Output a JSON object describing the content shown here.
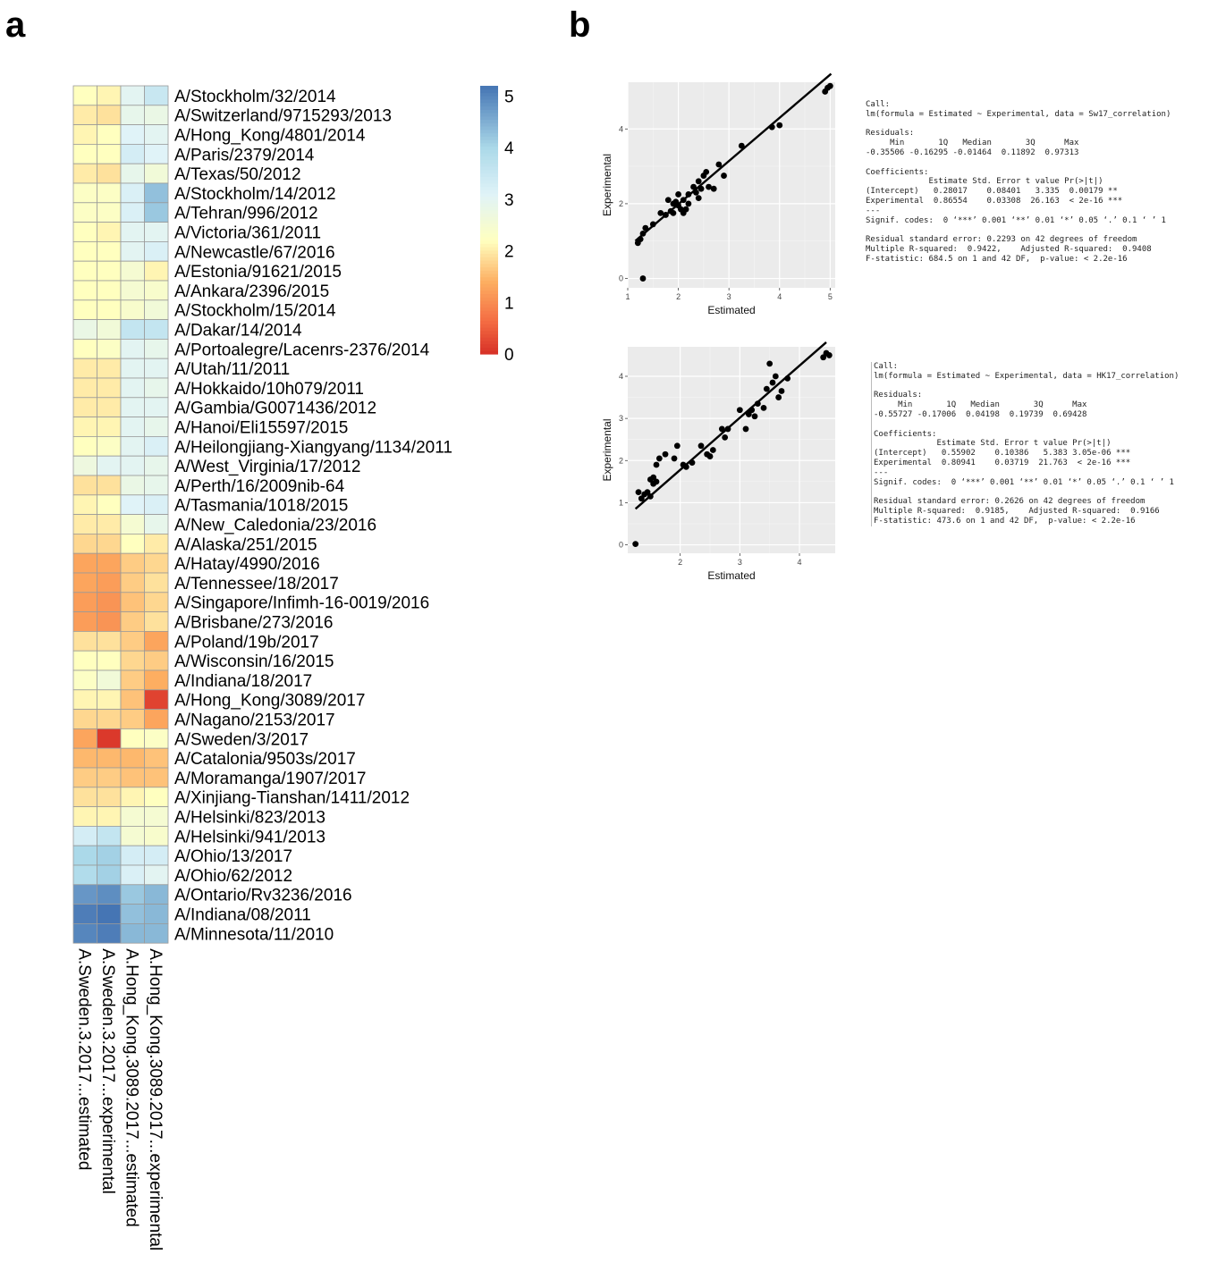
{
  "panel_letters": {
    "a": "a",
    "b": "b"
  },
  "chart_data": [
    {
      "type": "heatmap",
      "panel": "a",
      "columns": [
        "A.Sweden.3.2017...estimated",
        "A.Sweden.3.2017...experimental",
        "A.Hong_Kong.3089.2017...estimated",
        "A.Hong_Kong.3089.2017...experimental"
      ],
      "rows": [
        "A/Stockholm/32/2014",
        "A/Switzerland/9715293/2013",
        "A/Hong_Kong/4801/2014",
        "A/Paris/2379/2014",
        "A/Texas/50/2012",
        "A/Stockholm/14/2012",
        "A/Tehran/996/2012",
        "A/Victoria/361/2011",
        "A/Newcastle/67/2016",
        "A/Estonia/91621/2015",
        "A/Ankara/2396/2015",
        "A/Stockholm/15/2014",
        "A/Dakar/14/2014",
        "A/Portoalegre/Lacenrs-2376/2014",
        "A/Utah/11/2011",
        "A/Hokkaido/10h079/2011",
        "A/Gambia/G0071436/2012",
        "A/Hanoi/Eli15597/2015",
        "A/Heilongjiang-Xiangyang/1134/2011",
        "A/West_Virginia/17/2012",
        "A/Perth/16/2009nib-64",
        "A/Tasmania/1018/2015",
        "A/New_Caledonia/23/2016",
        "A/Alaska/251/2015",
        "A/Hatay/4990/2016",
        "A/Tennessee/18/2017",
        "A/Singapore/Infimh-16-0019/2016",
        "A/Brisbane/273/2016",
        "A/Poland/19b/2017",
        "A/Wisconsin/16/2015",
        "A/Indiana/18/2017",
        "A/Hong_Kong/3089/2017",
        "A/Nagano/2153/2017",
        "A/Sweden/3/2017",
        "A/Catalonia/9503s/2017",
        "A/Moramanga/1907/2017",
        "A/Xinjiang-Tianshan/1411/2012",
        "A/Helsinki/823/2013",
        "A/Helsinki/941/2013",
        "A/Ohio/13/2017",
        "A/Ohio/62/2012",
        "A/Ontario/Rv3236/2016",
        "A/Indiana/08/2011",
        "A/Minnesota/11/2010"
      ],
      "values": [
        [
          2.2,
          2.1,
          3.0,
          3.5
        ],
        [
          2.0,
          1.9,
          2.9,
          2.8
        ],
        [
          2.1,
          2.2,
          3.1,
          3.0
        ],
        [
          2.2,
          2.2,
          3.3,
          3.1
        ],
        [
          2.0,
          1.9,
          2.9,
          2.6
        ],
        [
          2.3,
          2.3,
          3.2,
          4.3
        ],
        [
          2.3,
          2.3,
          3.2,
          4.2
        ],
        [
          2.2,
          2.1,
          3.0,
          3.0
        ],
        [
          2.2,
          2.2,
          3.0,
          3.2
        ],
        [
          2.2,
          2.2,
          2.5,
          2.1
        ],
        [
          2.2,
          2.2,
          2.5,
          2.4
        ],
        [
          2.2,
          2.2,
          2.4,
          2.6
        ],
        [
          2.8,
          2.6,
          3.6,
          3.6
        ],
        [
          2.2,
          2.3,
          3.0,
          2.9
        ],
        [
          2.0,
          2.0,
          3.0,
          3.0
        ],
        [
          2.0,
          2.0,
          3.0,
          2.9
        ],
        [
          2.0,
          2.0,
          3.0,
          3.0
        ],
        [
          2.1,
          2.1,
          3.0,
          2.9
        ],
        [
          2.2,
          2.3,
          3.0,
          3.2
        ],
        [
          2.7,
          3.0,
          3.0,
          2.9
        ],
        [
          1.9,
          1.9,
          2.8,
          2.9
        ],
        [
          2.1,
          2.2,
          3.1,
          3.2
        ],
        [
          2.0,
          2.0,
          2.5,
          2.9
        ],
        [
          1.8,
          1.8,
          2.2,
          2.0
        ],
        [
          1.3,
          1.3,
          1.7,
          1.8
        ],
        [
          1.3,
          1.2,
          1.7,
          1.9
        ],
        [
          1.2,
          1.1,
          1.6,
          1.8
        ],
        [
          1.2,
          1.1,
          1.7,
          1.9
        ],
        [
          1.9,
          1.9,
          1.7,
          1.3
        ],
        [
          2.2,
          2.2,
          1.8,
          1.7
        ],
        [
          2.3,
          2.6,
          1.7,
          1.4
        ],
        [
          2.1,
          2.1,
          1.6,
          0.2
        ],
        [
          1.8,
          1.8,
          1.7,
          1.3
        ],
        [
          1.3,
          0.1,
          2.2,
          2.3
        ],
        [
          1.5,
          1.5,
          1.5,
          1.6
        ],
        [
          1.7,
          1.7,
          1.6,
          1.6
        ],
        [
          1.9,
          1.9,
          2.1,
          2.2
        ],
        [
          2.1,
          2.1,
          2.5,
          2.5
        ],
        [
          3.3,
          3.6,
          2.5,
          2.4
        ],
        [
          4.0,
          4.1,
          3.3,
          3.3
        ],
        [
          3.9,
          4.1,
          3.2,
          3.0
        ],
        [
          4.8,
          4.9,
          4.2,
          4.4
        ],
        [
          5.1,
          5.2,
          4.3,
          4.4
        ],
        [
          5.0,
          5.1,
          4.4,
          4.4
        ]
      ],
      "colorbar": {
        "min": 0,
        "max": 5.2,
        "ticks": [
          0,
          1,
          2,
          3,
          4,
          5
        ],
        "low_color": "#d73027",
        "mid_color": "#ffffbf",
        "high_color": "#4575b4"
      }
    },
    {
      "type": "scatter",
      "panel": "b-top",
      "xlabel": "Estimated",
      "ylabel": "Experimental",
      "xlim": [
        1.0,
        5.1
      ],
      "ylim": [
        -0.25,
        5.25
      ],
      "xticks": [
        1,
        2,
        3,
        4,
        5
      ],
      "yticks": [
        0,
        2,
        4
      ],
      "fit": {
        "intercept": 0.28017,
        "slope": 0.86554,
        "xrange": [
          1.15,
          5.02
        ],
        "orientation": "x_on_y"
      },
      "points": [
        [
          1.2,
          0.95
        ],
        [
          1.25,
          1.05
        ],
        [
          1.3,
          1.2
        ],
        [
          1.35,
          1.35
        ],
        [
          1.3,
          0.0
        ],
        [
          1.5,
          1.45
        ],
        [
          1.65,
          1.75
        ],
        [
          1.75,
          1.7
        ],
        [
          1.8,
          2.1
        ],
        [
          1.85,
          1.8
        ],
        [
          1.9,
          1.75
        ],
        [
          1.9,
          2.0
        ],
        [
          1.95,
          2.05
        ],
        [
          2.0,
          1.95
        ],
        [
          2.0,
          2.25
        ],
        [
          2.05,
          1.85
        ],
        [
          2.1,
          2.1
        ],
        [
          2.1,
          1.75
        ],
        [
          2.15,
          1.85
        ],
        [
          2.2,
          2.0
        ],
        [
          2.2,
          2.25
        ],
        [
          2.3,
          2.45
        ],
        [
          2.35,
          2.3
        ],
        [
          2.4,
          2.15
        ],
        [
          2.4,
          2.6
        ],
        [
          2.45,
          2.4
        ],
        [
          2.5,
          2.75
        ],
        [
          2.55,
          2.85
        ],
        [
          2.6,
          2.45
        ],
        [
          2.7,
          2.4
        ],
        [
          2.8,
          3.05
        ],
        [
          2.9,
          2.75
        ],
        [
          3.25,
          3.55
        ],
        [
          3.85,
          4.05
        ],
        [
          4.0,
          4.1
        ],
        [
          4.9,
          5.0
        ],
        [
          4.95,
          5.1
        ],
        [
          5.0,
          5.15
        ]
      ],
      "lm_output": "Call:\nlm(formula = Estimated ~ Experimental, data = Sw17_correlation)\n\nResiduals:\n     Min       1Q   Median       3Q      Max \n-0.35506 -0.16295 -0.01464  0.11892  0.97313 \n\nCoefficients:\n             Estimate Std. Error t value Pr(>|t|)    \n(Intercept)   0.28017    0.08401   3.335  0.00179 ** \nExperimental  0.86554    0.03308  26.163  < 2e-16 ***\n---\nSignif. codes:  0 ‘***’ 0.001 ‘**’ 0.01 ‘*’ 0.05 ‘.’ 0.1 ‘ ’ 1\n\nResidual standard error: 0.2293 on 42 degrees of freedom\nMultiple R-squared:  0.9422,\tAdjusted R-squared:  0.9408 \nF-statistic: 684.5 on 1 and 42 DF,  p-value: < 2.2e-16"
    },
    {
      "type": "scatter",
      "panel": "b-bottom",
      "xlabel": "Estimated",
      "ylabel": "Experimental",
      "xlim": [
        1.12,
        4.6
      ],
      "ylim": [
        -0.2,
        4.7
      ],
      "xticks": [
        2,
        3,
        4
      ],
      "yticks": [
        0,
        1,
        2,
        3,
        4
      ],
      "fit": {
        "intercept": 0.55902,
        "slope": 0.80941,
        "xrange": [
          1.25,
          4.45
        ],
        "orientation": "x_on_y"
      },
      "points": [
        [
          1.25,
          0.02
        ],
        [
          1.3,
          1.25
        ],
        [
          1.35,
          1.1
        ],
        [
          1.4,
          1.2
        ],
        [
          1.45,
          1.25
        ],
        [
          1.5,
          1.15
        ],
        [
          1.5,
          1.55
        ],
        [
          1.55,
          1.45
        ],
        [
          1.55,
          1.6
        ],
        [
          1.6,
          1.9
        ],
        [
          1.6,
          1.5
        ],
        [
          1.65,
          2.05
        ],
        [
          1.75,
          2.15
        ],
        [
          1.9,
          2.05
        ],
        [
          1.95,
          2.35
        ],
        [
          2.05,
          1.9
        ],
        [
          2.1,
          1.85
        ],
        [
          2.2,
          1.95
        ],
        [
          2.35,
          2.35
        ],
        [
          2.45,
          2.15
        ],
        [
          2.5,
          2.1
        ],
        [
          2.55,
          2.25
        ],
        [
          2.7,
          2.75
        ],
        [
          2.75,
          2.55
        ],
        [
          2.8,
          2.75
        ],
        [
          3.0,
          3.2
        ],
        [
          3.1,
          2.75
        ],
        [
          3.15,
          3.1
        ],
        [
          3.2,
          3.2
        ],
        [
          3.25,
          3.05
        ],
        [
          3.3,
          3.35
        ],
        [
          3.4,
          3.25
        ],
        [
          3.45,
          3.7
        ],
        [
          3.5,
          4.3
        ],
        [
          3.55,
          3.85
        ],
        [
          3.6,
          4.0
        ],
        [
          3.65,
          3.5
        ],
        [
          3.7,
          3.65
        ],
        [
          3.8,
          3.95
        ],
        [
          4.4,
          4.45
        ],
        [
          4.45,
          4.55
        ],
        [
          4.5,
          4.5
        ]
      ],
      "lm_output": "Call:\nlm(formula = Estimated ~ Experimental, data = HK17_correlation)\n\nResiduals:\n     Min       1Q   Median       3Q      Max \n-0.55727 -0.17006  0.04198  0.19739  0.69428 \n\nCoefficients:\n             Estimate Std. Error t value Pr(>|t|)    \n(Intercept)   0.55902    0.10386   5.383 3.05e-06 ***\nExperimental  0.80941    0.03719  21.763  < 2e-16 ***\n---\nSignif. codes:  0 ‘***’ 0.001 ‘**’ 0.01 ‘*’ 0.05 ‘.’ 0.1 ‘ ’ 1\n\nResidual standard error: 0.2626 on 42 degrees of freedom\nMultiple R-squared:  0.9185,\tAdjusted R-squared:  0.9166 \nF-statistic: 473.6 on 1 and 42 DF,  p-value: < 2.2e-16"
    }
  ]
}
